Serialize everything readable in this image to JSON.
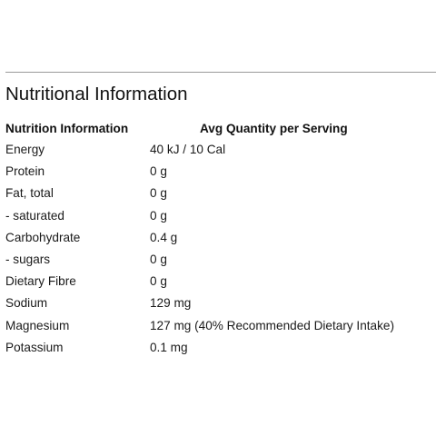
{
  "section": {
    "title": "Nutritional Information"
  },
  "table": {
    "headers": {
      "name": "Nutrition Information",
      "quantity": "Avg Quantity per Serving"
    },
    "rows": [
      {
        "name": "Energy",
        "value": "40 kJ / 10 Cal"
      },
      {
        "name": "Protein",
        "value": "0 g"
      },
      {
        "name": "Fat, total",
        "value": "0 g"
      },
      {
        "name": "- saturated",
        "value": "0 g"
      },
      {
        "name": "Carbohydrate",
        "value": "0.4 g"
      },
      {
        "name": "- sugars",
        "value": "0 g"
      },
      {
        "name": "Dietary Fibre",
        "value": "0 g"
      },
      {
        "name": "Sodium",
        "value": "129 mg"
      },
      {
        "name": "Magnesium",
        "value": "127 mg (40% Recommended Dietary Intake)"
      },
      {
        "name": "Potassium",
        "value": "0.1 mg"
      }
    ]
  }
}
